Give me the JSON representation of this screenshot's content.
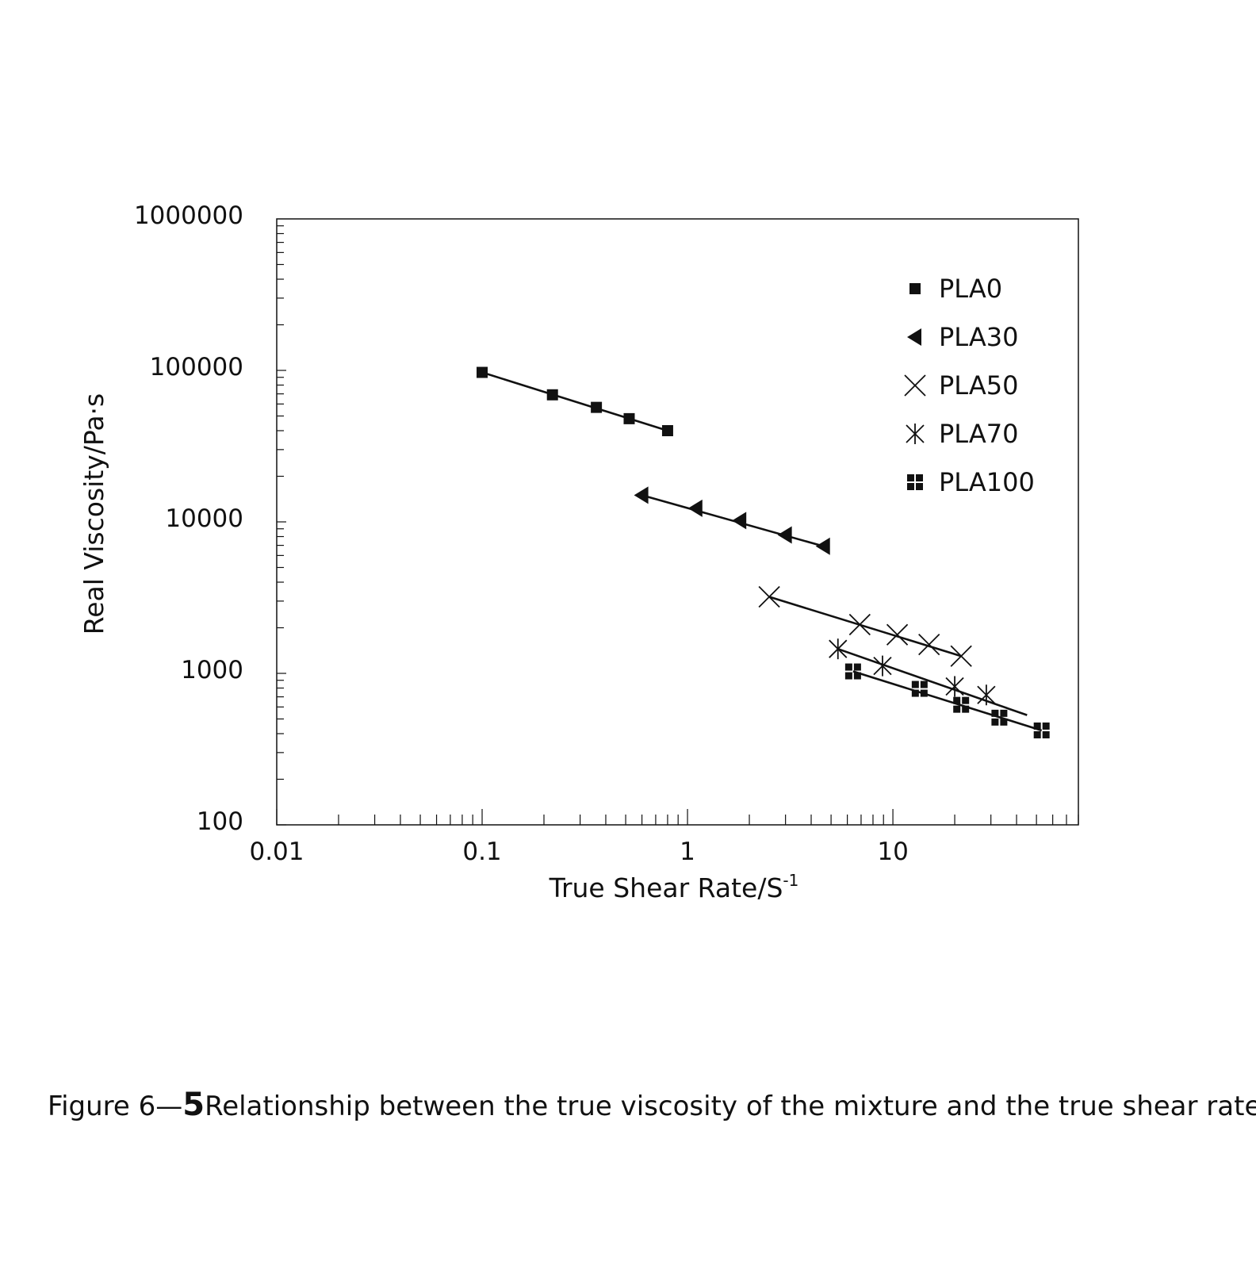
{
  "caption": {
    "prefix": "Figure 6—",
    "number": "5",
    "text": "Relationship between the true viscosity of the mixture and the true shear rate"
  },
  "chart_data": {
    "type": "scatter",
    "xlabel": "True Shear Rate/S",
    "xlabel_superscript": "-1",
    "ylabel": "Real Viscosity/Pa·s",
    "xscale": "log",
    "yscale": "log",
    "xlim": [
      0.01,
      80
    ],
    "ylim": [
      100,
      1000000
    ],
    "x_ticks": [
      0.01,
      0.1,
      1,
      10
    ],
    "x_tick_labels": [
      "0.01",
      "0.1",
      "1",
      "10"
    ],
    "y_ticks": [
      100,
      1000,
      10000,
      100000,
      1000000
    ],
    "y_tick_labels": [
      "100",
      "1000",
      "10000",
      "100000",
      "1000000"
    ],
    "grid": false,
    "legend_position": "top-right",
    "line_color": "#111111",
    "series": [
      {
        "name": "PLA0",
        "marker": "square",
        "x": [
          0.1,
          0.22,
          0.36,
          0.52,
          0.8
        ],
        "y": [
          97000,
          69000,
          57000,
          48000,
          40000
        ],
        "fit": [
          [
            0.1,
            97000
          ],
          [
            0.8,
            40000
          ]
        ]
      },
      {
        "name": "PLA30",
        "marker": "triangle-left",
        "x": [
          0.6,
          1.1,
          1.8,
          3.0,
          4.6
        ],
        "y": [
          15000,
          12300,
          10200,
          8200,
          6900
        ],
        "fit": [
          [
            0.6,
            15000
          ],
          [
            4.6,
            6900
          ]
        ]
      },
      {
        "name": "PLA50",
        "marker": "x",
        "x": [
          2.5,
          6.9,
          10.5,
          15.0,
          21.5
        ],
        "y": [
          3200,
          2100,
          1800,
          1550,
          1300
        ],
        "fit": [
          [
            2.5,
            3200
          ],
          [
            21.5,
            1300
          ]
        ]
      },
      {
        "name": "PLA70",
        "marker": "asterisk",
        "x": [
          5.4,
          8.9,
          20.0,
          28.5
        ],
        "y": [
          1450,
          1120,
          820,
          720
        ],
        "fit": [
          [
            5.4,
            1450
          ],
          [
            45,
            530
          ]
        ]
      },
      {
        "name": "PLA100",
        "marker": "quad-square",
        "x": [
          6.4,
          13.5,
          21.5,
          33.0,
          53.0
        ],
        "y": [
          1030,
          790,
          620,
          510,
          420
        ],
        "fit": [
          [
            6.4,
            1030
          ],
          [
            53.0,
            420
          ]
        ]
      }
    ]
  }
}
